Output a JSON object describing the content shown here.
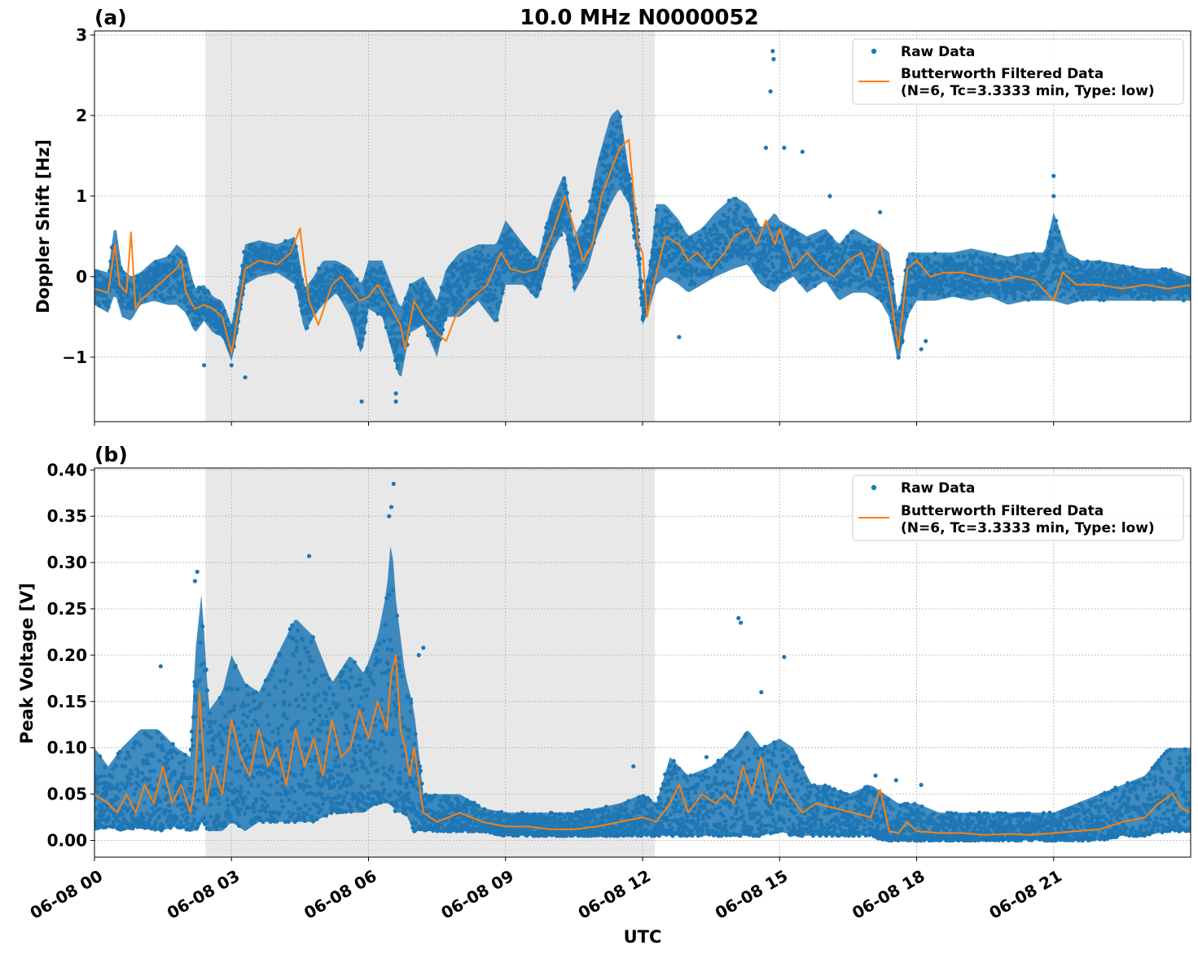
{
  "figure": {
    "title": "10.0 MHz N0000052",
    "xlabel": "UTC",
    "x_ticks": [
      "06-08 00",
      "06-08 03",
      "06-08 06",
      "06-08 09",
      "06-08 12",
      "06-08 15",
      "06-08 18",
      "06-08 21"
    ],
    "x_tick_hours": [
      0,
      3,
      6,
      9,
      12,
      15,
      18,
      21
    ],
    "xlim_hours": [
      0,
      24
    ],
    "shaded_interval_hours": [
      2.43,
      12.27
    ],
    "colors": {
      "raw": "#1f77b4",
      "filtered": "#ff7f0e",
      "shade": "#e8e8e8",
      "grid": "#b0b0b0"
    }
  },
  "chart_data": [
    {
      "type": "scatter",
      "panel_label": "(a)",
      "ylabel": "Doppler Shift [Hz]",
      "ylim": [
        -1.8,
        3.05
      ],
      "y_ticks": [
        -1,
        0,
        1,
        2,
        3
      ],
      "y_tick_labels": [
        "−1",
        "0",
        "1",
        "2",
        "3"
      ],
      "grid": true,
      "legend_position": "top-right",
      "legend": {
        "raw_label": "Raw Data",
        "filtered_label_1": "Butterworth Filtered Data",
        "filtered_label_2": "(N=6, Tc=3.3333 min, Type: low)"
      },
      "raw_band": {
        "x": [
          0,
          0.3,
          0.45,
          0.6,
          0.8,
          1.0,
          1.3,
          1.6,
          1.8,
          2.0,
          2.2,
          2.4,
          2.6,
          2.8,
          3.0,
          3.1,
          3.3,
          3.6,
          4.0,
          4.4,
          4.6,
          4.8,
          5.0,
          5.3,
          5.6,
          5.85,
          6.0,
          6.3,
          6.5,
          6.7,
          6.9,
          7.2,
          7.5,
          7.7,
          8.0,
          8.4,
          8.8,
          9.0,
          9.4,
          9.7,
          10.0,
          10.3,
          10.5,
          10.8,
          11.0,
          11.3,
          11.5,
          11.7,
          11.9,
          12.0,
          12.15,
          12.3,
          12.5,
          12.8,
          13.0,
          13.3,
          13.6,
          14.0,
          14.3,
          14.6,
          14.9,
          15.0,
          15.3,
          15.6,
          16.0,
          16.3,
          16.6,
          16.9,
          17.2,
          17.4,
          17.6,
          17.8,
          18.0,
          18.4,
          18.8,
          19.2,
          19.6,
          20.0,
          20.4,
          20.8,
          21.0,
          21.3,
          21.6,
          22.0,
          22.5,
          23.0,
          23.5,
          24.0
        ],
        "low": [
          -0.35,
          -0.45,
          -0.2,
          -0.5,
          -0.55,
          -0.35,
          -0.3,
          -0.35,
          -0.35,
          -0.45,
          -0.7,
          -0.55,
          -0.7,
          -0.75,
          -1.05,
          -0.8,
          -0.1,
          0.0,
          0.05,
          -0.1,
          -0.7,
          -0.5,
          -0.35,
          -0.2,
          -0.5,
          -1.0,
          -0.4,
          -0.5,
          -0.9,
          -1.3,
          -0.7,
          -0.6,
          -1.0,
          -0.5,
          -0.5,
          -0.3,
          -0.6,
          -0.1,
          -0.1,
          -0.3,
          0.3,
          0.6,
          -0.2,
          0.1,
          0.5,
          0.9,
          1.1,
          0.9,
          0.2,
          -0.6,
          -0.4,
          -0.1,
          0.0,
          -0.1,
          -0.2,
          -0.1,
          0.0,
          0.1,
          0.15,
          -0.1,
          -0.2,
          -0.1,
          0.0,
          -0.2,
          -0.05,
          -0.3,
          -0.2,
          -0.2,
          -0.3,
          -0.5,
          -1.1,
          -0.5,
          -0.3,
          -0.3,
          -0.25,
          -0.3,
          -0.25,
          -0.35,
          -0.3,
          -0.3,
          -0.3,
          -0.35,
          -0.3,
          -0.3,
          -0.3,
          -0.3,
          -0.3,
          -0.3
        ],
        "high": [
          0.1,
          0.05,
          0.7,
          0.1,
          0.0,
          0.05,
          0.2,
          0.25,
          0.4,
          0.3,
          -0.15,
          -0.1,
          -0.25,
          -0.3,
          -0.6,
          -0.3,
          0.4,
          0.45,
          0.4,
          0.5,
          -0.15,
          0.0,
          0.2,
          0.2,
          0.1,
          -0.1,
          0.2,
          0.2,
          -0.1,
          -0.4,
          -0.1,
          0.0,
          -0.3,
          0.1,
          0.3,
          0.4,
          0.4,
          0.7,
          0.4,
          0.2,
          0.9,
          1.3,
          0.5,
          0.8,
          1.4,
          2.0,
          2.1,
          1.3,
          0.7,
          -0.2,
          0.1,
          0.9,
          0.9,
          0.7,
          0.5,
          0.6,
          0.8,
          1.0,
          0.9,
          0.6,
          0.8,
          0.7,
          0.6,
          0.5,
          0.6,
          0.4,
          0.6,
          0.5,
          0.4,
          0.3,
          -0.5,
          0.3,
          0.3,
          0.3,
          0.3,
          0.35,
          0.3,
          0.25,
          0.3,
          0.3,
          0.8,
          0.3,
          0.2,
          0.2,
          0.15,
          0.1,
          0.1,
          0.0
        ]
      },
      "raw_outliers": {
        "x": [
          14.85,
          14.87,
          14.8,
          14.7,
          15.5,
          16.1,
          17.2,
          17.6,
          18.1,
          18.2,
          3.3,
          3.0,
          2.4,
          5.85,
          6.6,
          6.6,
          21.0,
          21.0,
          15.1,
          12.8
        ],
        "y": [
          2.8,
          2.7,
          2.3,
          1.6,
          1.55,
          1.0,
          0.8,
          -0.9,
          -0.9,
          -0.8,
          -1.25,
          -1.1,
          -1.1,
          -1.55,
          -1.55,
          -1.45,
          1.25,
          1.0,
          1.6,
          -0.75
        ]
      },
      "filtered": {
        "x": [
          0,
          0.3,
          0.45,
          0.55,
          0.7,
          0.8,
          0.9,
          1.0,
          1.3,
          1.6,
          1.8,
          1.9,
          2.0,
          2.2,
          2.4,
          2.6,
          2.8,
          3.0,
          3.1,
          3.3,
          3.6,
          4.0,
          4.3,
          4.5,
          4.6,
          4.7,
          4.9,
          5.2,
          5.4,
          5.6,
          5.8,
          6.0,
          6.2,
          6.4,
          6.5,
          6.7,
          6.8,
          7.0,
          7.2,
          7.5,
          7.7,
          7.9,
          8.2,
          8.6,
          8.9,
          9.1,
          9.4,
          9.7,
          10.0,
          10.3,
          10.5,
          10.7,
          10.9,
          11.1,
          11.3,
          11.5,
          11.7,
          11.9,
          12.0,
          12.1,
          12.2,
          12.5,
          12.8,
          13.0,
          13.2,
          13.5,
          13.8,
          14.0,
          14.3,
          14.5,
          14.7,
          14.9,
          15.0,
          15.3,
          15.6,
          15.9,
          16.2,
          16.5,
          16.8,
          17.0,
          17.2,
          17.4,
          17.6,
          17.8,
          18.0,
          18.3,
          18.6,
          19.0,
          19.4,
          19.8,
          20.2,
          20.6,
          21.0,
          21.2,
          21.5,
          22.0,
          22.5,
          23.0,
          23.5,
          24.0
        ],
        "y": [
          -0.15,
          -0.2,
          0.4,
          -0.1,
          -0.2,
          0.55,
          -0.4,
          -0.3,
          -0.15,
          0.0,
          0.1,
          0.2,
          -0.2,
          -0.4,
          -0.35,
          -0.4,
          -0.5,
          -0.95,
          -0.6,
          0.1,
          0.2,
          0.15,
          0.3,
          0.6,
          0.1,
          -0.3,
          -0.6,
          -0.1,
          0.0,
          -0.15,
          -0.3,
          -0.25,
          -0.1,
          -0.3,
          -0.4,
          -0.6,
          -0.9,
          -0.3,
          -0.5,
          -0.7,
          -0.8,
          -0.5,
          -0.3,
          -0.1,
          0.3,
          0.1,
          0.05,
          0.1,
          0.5,
          1.0,
          0.6,
          0.2,
          0.4,
          1.0,
          1.3,
          1.6,
          1.7,
          0.4,
          0.3,
          -0.5,
          -0.2,
          0.5,
          0.4,
          0.2,
          0.3,
          0.1,
          0.3,
          0.5,
          0.6,
          0.4,
          0.7,
          0.4,
          0.6,
          0.1,
          0.3,
          0.1,
          0.0,
          0.2,
          0.3,
          0.0,
          0.4,
          -0.1,
          -0.9,
          0.1,
          0.2,
          0.0,
          0.05,
          0.05,
          0.0,
          -0.05,
          0.0,
          -0.05,
          -0.3,
          0.05,
          -0.1,
          -0.1,
          -0.15,
          -0.1,
          -0.15,
          -0.1
        ]
      }
    },
    {
      "type": "scatter",
      "panel_label": "(b)",
      "ylabel": "Peak Voltage [V]",
      "ylim": [
        -0.018,
        0.402
      ],
      "y_ticks": [
        0.0,
        0.05,
        0.1,
        0.15,
        0.2,
        0.25,
        0.3,
        0.35,
        0.4
      ],
      "y_tick_labels": [
        "0.00",
        "0.05",
        "0.10",
        "0.15",
        "0.20",
        "0.25",
        "0.30",
        "0.35",
        "0.40"
      ],
      "grid": true,
      "legend_position": "top-right",
      "legend": {
        "raw_label": "Raw Data",
        "filtered_label_1": "Butterworth Filtered Data",
        "filtered_label_2": "(N=6, Tc=3.3333 min, Type: low)"
      },
      "raw_band": {
        "x": [
          0,
          0.3,
          0.6,
          1.0,
          1.4,
          1.8,
          2.1,
          2.2,
          2.35,
          2.5,
          2.8,
          3.0,
          3.3,
          3.6,
          4.0,
          4.4,
          4.8,
          5.2,
          5.6,
          5.9,
          6.2,
          6.4,
          6.5,
          6.6,
          6.8,
          7.0,
          7.2,
          7.5,
          8.0,
          8.5,
          9.0,
          9.5,
          10.0,
          10.5,
          11.0,
          11.5,
          12.0,
          12.3,
          12.6,
          13.0,
          13.5,
          14.0,
          14.3,
          14.6,
          15.0,
          15.3,
          15.7,
          16.0,
          16.5,
          17.0,
          17.3,
          17.6,
          18.0,
          18.5,
          19.0,
          19.5,
          20.0,
          20.5,
          21.0,
          21.5,
          22.0,
          22.5,
          23.0,
          23.5,
          24.0
        ],
        "low": [
          0.01,
          0.015,
          0.01,
          0.015,
          0.01,
          0.015,
          0.01,
          0.01,
          0.02,
          0.01,
          0.01,
          0.02,
          0.01,
          0.02,
          0.02,
          0.02,
          0.02,
          0.03,
          0.03,
          0.03,
          0.04,
          0.04,
          0.04,
          0.03,
          0.03,
          0.01,
          0.01,
          0.01,
          0.01,
          0.01,
          0.005,
          0.005,
          0.005,
          0.005,
          0.005,
          0.005,
          0.005,
          0.005,
          0.005,
          0.005,
          0.005,
          0.005,
          0.005,
          0.005,
          0.01,
          0.005,
          0.005,
          0.005,
          0.005,
          0.005,
          0.0,
          0.0,
          0.0,
          0.0,
          0.0,
          0.0,
          0.0,
          0.0,
          0.0,
          0.0,
          0.0,
          0.005,
          0.005,
          0.01,
          0.01
        ],
        "high": [
          0.1,
          0.08,
          0.1,
          0.12,
          0.12,
          0.1,
          0.09,
          0.2,
          0.27,
          0.14,
          0.16,
          0.2,
          0.17,
          0.16,
          0.2,
          0.24,
          0.22,
          0.17,
          0.2,
          0.18,
          0.22,
          0.27,
          0.33,
          0.26,
          0.18,
          0.14,
          0.05,
          0.05,
          0.05,
          0.035,
          0.03,
          0.03,
          0.03,
          0.03,
          0.035,
          0.04,
          0.05,
          0.04,
          0.09,
          0.07,
          0.08,
          0.1,
          0.12,
          0.1,
          0.11,
          0.1,
          0.06,
          0.06,
          0.05,
          0.06,
          0.05,
          0.04,
          0.04,
          0.03,
          0.03,
          0.03,
          0.03,
          0.03,
          0.03,
          0.04,
          0.05,
          0.06,
          0.07,
          0.1,
          0.1
        ]
      },
      "raw_outliers": {
        "x": [
          6.55,
          6.5,
          6.45,
          4.7,
          2.25,
          2.2,
          1.45,
          7.2,
          14.1,
          14.15,
          15.1,
          14.6,
          17.1,
          17.55,
          18.1,
          11.8,
          13.4,
          7.1
        ],
        "y": [
          0.385,
          0.36,
          0.35,
          0.307,
          0.29,
          0.28,
          0.188,
          0.208,
          0.24,
          0.235,
          0.198,
          0.16,
          0.07,
          0.065,
          0.06,
          0.08,
          0.09,
          0.2
        ]
      },
      "filtered": {
        "x": [
          0,
          0.3,
          0.5,
          0.7,
          0.9,
          1.1,
          1.3,
          1.5,
          1.7,
          1.9,
          2.1,
          2.2,
          2.3,
          2.45,
          2.6,
          2.8,
          3.0,
          3.2,
          3.4,
          3.6,
          3.8,
          4.0,
          4.2,
          4.4,
          4.6,
          4.8,
          5.0,
          5.2,
          5.4,
          5.6,
          5.8,
          6.0,
          6.2,
          6.4,
          6.5,
          6.6,
          6.7,
          6.8,
          6.9,
          7.0,
          7.2,
          7.5,
          8.0,
          8.5,
          9.0,
          9.5,
          10.0,
          10.5,
          11.0,
          11.5,
          12.0,
          12.3,
          12.6,
          12.8,
          13.0,
          13.3,
          13.6,
          13.8,
          14.0,
          14.2,
          14.4,
          14.6,
          14.8,
          15.0,
          15.2,
          15.5,
          15.8,
          16.2,
          16.6,
          17.0,
          17.2,
          17.4,
          17.6,
          17.8,
          18.0,
          18.5,
          19.0,
          19.5,
          20.0,
          20.5,
          21.0,
          21.5,
          22.0,
          22.5,
          23.0,
          23.3,
          23.6,
          23.8,
          24.0
        ],
        "y": [
          0.05,
          0.04,
          0.03,
          0.05,
          0.03,
          0.06,
          0.04,
          0.08,
          0.04,
          0.06,
          0.03,
          0.06,
          0.16,
          0.04,
          0.08,
          0.05,
          0.13,
          0.09,
          0.07,
          0.12,
          0.08,
          0.1,
          0.06,
          0.12,
          0.08,
          0.11,
          0.07,
          0.13,
          0.09,
          0.1,
          0.14,
          0.11,
          0.15,
          0.12,
          0.18,
          0.2,
          0.12,
          0.1,
          0.07,
          0.1,
          0.03,
          0.02,
          0.03,
          0.02,
          0.015,
          0.015,
          0.012,
          0.012,
          0.015,
          0.02,
          0.025,
          0.02,
          0.04,
          0.06,
          0.03,
          0.05,
          0.04,
          0.05,
          0.04,
          0.08,
          0.05,
          0.09,
          0.04,
          0.07,
          0.05,
          0.03,
          0.04,
          0.035,
          0.03,
          0.025,
          0.055,
          0.01,
          0.008,
          0.02,
          0.01,
          0.008,
          0.008,
          0.006,
          0.007,
          0.006,
          0.008,
          0.01,
          0.012,
          0.02,
          0.025,
          0.04,
          0.05,
          0.035,
          0.03
        ]
      }
    }
  ]
}
